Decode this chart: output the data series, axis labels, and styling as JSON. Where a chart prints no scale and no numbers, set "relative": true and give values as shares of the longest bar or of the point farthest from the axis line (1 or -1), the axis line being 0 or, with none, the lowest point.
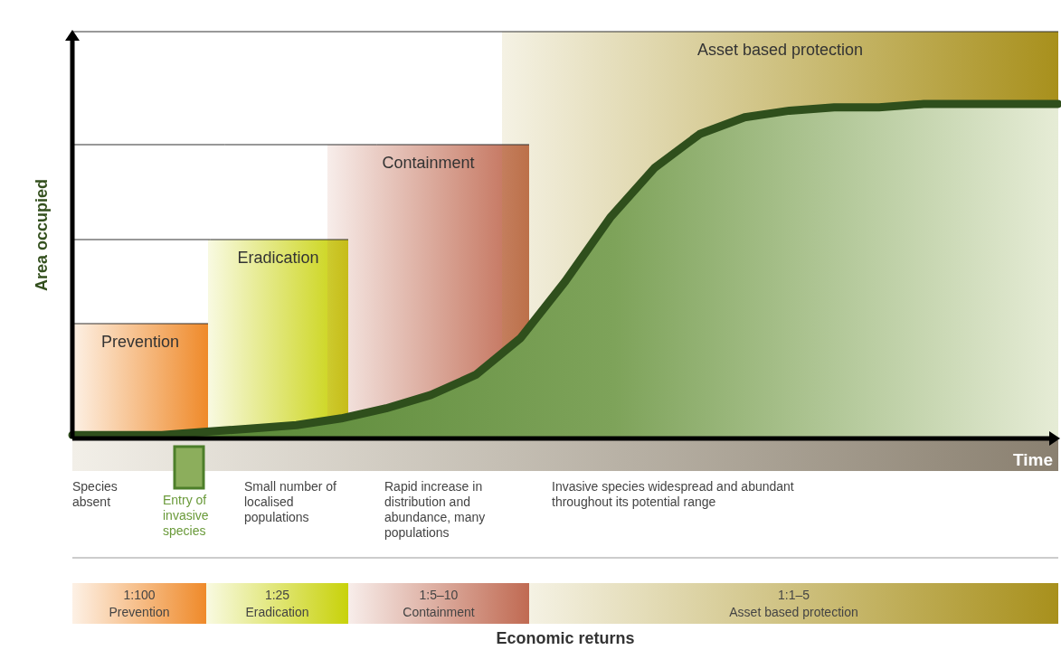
{
  "chart_data": {
    "type": "area",
    "relative": true,
    "ylabel": "Area occupied",
    "xlabel": "Time",
    "categories": [
      null,
      null,
      null,
      null,
      null,
      null,
      null,
      null,
      null,
      null,
      null,
      null,
      null,
      null,
      null,
      null,
      null,
      null,
      null,
      null,
      null,
      null,
      null
    ],
    "series": [
      {
        "color": "#2f4f1c",
        "values": [
          0.01,
          0.01,
          0.01,
          0.02,
          0.03,
          0.04,
          0.06,
          0.09,
          0.13,
          0.19,
          0.3,
          0.47,
          0.66,
          0.81,
          0.91,
          0.96,
          0.98,
          0.99,
          0.99,
          1,
          1,
          1,
          1
        ]
      }
    ],
    "annotations": [
      "Prevention",
      "Eradication",
      "Containment",
      "Asset based protection",
      "Species absent",
      "Entry of invasive species",
      "Small number of localised populations",
      "Rapid increase in distribution and abundance, many populations",
      "Invasive species widespread and abundant throughout its potential range",
      "1:100",
      "1:25",
      "1:5–10",
      "1:1–5",
      "Prevention",
      "Eradication",
      "Containment",
      "Asset based protection",
      "Economic returns"
    ]
  }
}
